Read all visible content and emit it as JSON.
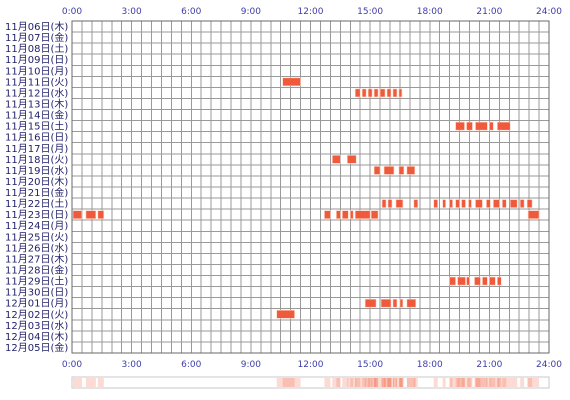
{
  "colors": {
    "background": "#ffffff",
    "grid": "#9a9a9a",
    "frame": "#6a6a6a",
    "activity": "#f05a3c",
    "activity_edge": "#ffd8c8",
    "tick_text": "#3c3ca8",
    "row_text": "#22226a"
  },
  "chart_data": {
    "type": "heatmap",
    "title": "",
    "xlabel": "",
    "ylabel": "",
    "xlim": [
      0,
      24
    ],
    "x_unit": "hours",
    "x_ticks": [
      "0:00",
      "3:00",
      "6:00",
      "9:00",
      "12:00",
      "15:00",
      "18:00",
      "21:00",
      "24:00"
    ],
    "rows": [
      {
        "label": "11月06日(木)",
        "segments": []
      },
      {
        "label": "11月07日(金)",
        "segments": []
      },
      {
        "label": "11月08日(土)",
        "segments": []
      },
      {
        "label": "11月09日(日)",
        "segments": []
      },
      {
        "label": "11月10日(月)",
        "segments": []
      },
      {
        "label": "11月11日(火)",
        "segments": [
          [
            10.6,
            11.5
          ]
        ]
      },
      {
        "label": "11月12日(水)",
        "segments": [
          [
            14.25,
            14.5
          ],
          [
            14.6,
            14.8
          ],
          [
            14.9,
            15.1
          ],
          [
            15.2,
            15.4
          ],
          [
            15.5,
            15.75
          ],
          [
            15.85,
            16.05
          ],
          [
            16.15,
            16.35
          ],
          [
            16.45,
            16.6
          ]
        ]
      },
      {
        "label": "11月13日(木)",
        "segments": []
      },
      {
        "label": "11月14日(金)",
        "segments": []
      },
      {
        "label": "11月15日(土)",
        "segments": [
          [
            19.3,
            19.75
          ],
          [
            19.85,
            20.15
          ],
          [
            20.3,
            20.9
          ],
          [
            21.0,
            21.2
          ],
          [
            21.4,
            22.05
          ]
        ]
      },
      {
        "label": "11月16日(日)",
        "segments": []
      },
      {
        "label": "11月17日(月)",
        "segments": []
      },
      {
        "label": "11月18日(火)",
        "segments": [
          [
            13.1,
            13.5
          ],
          [
            13.85,
            14.3
          ]
        ]
      },
      {
        "label": "11月19日(水)",
        "segments": [
          [
            15.2,
            15.5
          ],
          [
            15.7,
            16.2
          ],
          [
            16.45,
            16.7
          ],
          [
            16.85,
            17.25
          ]
        ]
      },
      {
        "label": "11月20日(木)",
        "segments": []
      },
      {
        "label": "11月21日(金)",
        "segments": []
      },
      {
        "label": "11月22日(土)",
        "segments": [
          [
            15.6,
            15.8
          ],
          [
            15.9,
            16.1
          ],
          [
            16.3,
            16.65
          ],
          [
            17.2,
            17.4
          ],
          [
            18.2,
            18.4
          ],
          [
            18.65,
            18.8
          ],
          [
            19.0,
            19.15
          ],
          [
            19.3,
            19.5
          ],
          [
            19.6,
            19.8
          ],
          [
            19.95,
            20.1
          ],
          [
            20.3,
            20.65
          ],
          [
            20.85,
            21.05
          ],
          [
            21.2,
            21.5
          ],
          [
            21.65,
            21.85
          ],
          [
            22.05,
            22.4
          ],
          [
            22.55,
            22.75
          ],
          [
            22.9,
            23.15
          ]
        ]
      },
      {
        "label": "11月23日(日)",
        "segments": [
          [
            0.05,
            0.5
          ],
          [
            0.7,
            1.2
          ],
          [
            1.3,
            1.6
          ],
          [
            12.7,
            13.0
          ],
          [
            13.3,
            13.5
          ],
          [
            13.6,
            13.9
          ],
          [
            14.0,
            14.15
          ],
          [
            14.25,
            15.0
          ],
          [
            15.05,
            15.4
          ],
          [
            22.95,
            23.5
          ]
        ]
      },
      {
        "label": "11月24日(月)",
        "segments": []
      },
      {
        "label": "11月25日(火)",
        "segments": []
      },
      {
        "label": "11月26日(水)",
        "segments": []
      },
      {
        "label": "11月27日(木)",
        "segments": []
      },
      {
        "label": "11月28日(金)",
        "segments": []
      },
      {
        "label": "11月29日(土)",
        "segments": [
          [
            19.0,
            19.3
          ],
          [
            19.4,
            19.8
          ],
          [
            19.85,
            20.0
          ],
          [
            20.25,
            20.55
          ],
          [
            20.65,
            20.9
          ],
          [
            21.0,
            21.3
          ],
          [
            21.4,
            21.6
          ]
        ]
      },
      {
        "label": "11月30日(日)",
        "segments": []
      },
      {
        "label": "12月01日(月)",
        "segments": [
          [
            14.75,
            15.3
          ],
          [
            15.55,
            16.05
          ],
          [
            16.15,
            16.35
          ],
          [
            16.5,
            16.65
          ],
          [
            16.85,
            17.3
          ]
        ]
      },
      {
        "label": "12月02日(火)",
        "segments": [
          [
            10.3,
            11.2
          ]
        ]
      },
      {
        "label": "12月03日(水)",
        "segments": []
      },
      {
        "label": "12月04日(木)",
        "segments": []
      },
      {
        "label": "12月05日(金)",
        "segments": []
      }
    ]
  }
}
